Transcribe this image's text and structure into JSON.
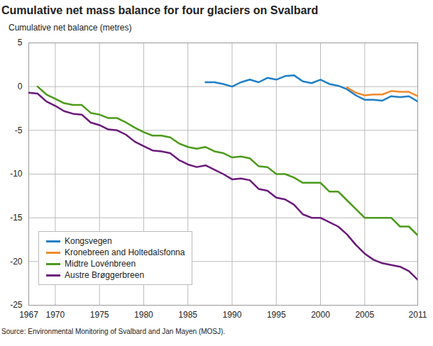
{
  "chart_data": {
    "type": "line",
    "title": "Cumulative net mass balance for four glaciers on Svalbard",
    "y_label": "Cumulative net balance (metres)",
    "source": "Source: Environmental Monitoring of Svalbard and Jan Mayen (MOSJ).",
    "x": [
      1967,
      1968,
      1969,
      1970,
      1971,
      1972,
      1973,
      1974,
      1975,
      1976,
      1977,
      1978,
      1979,
      1980,
      1981,
      1982,
      1983,
      1984,
      1985,
      1986,
      1987,
      1988,
      1989,
      1990,
      1991,
      1992,
      1993,
      1994,
      1995,
      1996,
      1997,
      1998,
      1999,
      2000,
      2001,
      2002,
      2003,
      2004,
      2005,
      2006,
      2007,
      2008,
      2009,
      2010,
      2011
    ],
    "series": [
      {
        "name": "Kongsvegen",
        "color": "#1f7fc6",
        "values": [
          null,
          null,
          null,
          null,
          null,
          null,
          null,
          null,
          null,
          null,
          null,
          null,
          null,
          null,
          null,
          null,
          null,
          null,
          null,
          null,
          0.5,
          0.5,
          0.3,
          0.0,
          0.5,
          0.8,
          0.5,
          1.0,
          0.8,
          1.2,
          1.3,
          0.6,
          0.4,
          0.8,
          0.3,
          0.1,
          -0.3,
          -1.0,
          -1.5,
          -1.5,
          -1.6,
          -1.1,
          -1.2,
          -1.1,
          -1.7
        ]
      },
      {
        "name": "Kronebreen and Holtedalsfonna",
        "color": "#f08a2c",
        "values": [
          null,
          null,
          null,
          null,
          null,
          null,
          null,
          null,
          null,
          null,
          null,
          null,
          null,
          null,
          null,
          null,
          null,
          null,
          null,
          null,
          null,
          null,
          null,
          null,
          null,
          null,
          null,
          null,
          null,
          null,
          null,
          null,
          null,
          null,
          null,
          null,
          -0.1,
          -0.7,
          -1.0,
          -0.9,
          -0.9,
          -0.5,
          -0.6,
          -0.6,
          -1.1
        ]
      },
      {
        "name": "Midtre Lovénbreen",
        "color": "#4c9a1a",
        "values": [
          null,
          0,
          -0.9,
          -1.4,
          -1.9,
          -2.1,
          -2.1,
          -3.0,
          -3.2,
          -3.6,
          -3.6,
          -4.1,
          -4.7,
          -5.2,
          -5.6,
          -5.6,
          -5.8,
          -6.5,
          -6.9,
          -7.1,
          -6.9,
          -7.4,
          -7.6,
          -8.1,
          -8.0,
          -8.2,
          -9.1,
          -9.2,
          -10.0,
          -10.0,
          -10.4,
          -11.0,
          -11.0,
          -11.0,
          -12.0,
          -12.0,
          -13.0,
          -14.0,
          -15.0,
          -15.0,
          -15.0,
          -15.0,
          -16.0,
          -16.0,
          -17.0
        ]
      },
      {
        "name": "Austre Brøggerbreen",
        "color": "#6a1a7a",
        "values": [
          -0.7,
          -0.8,
          -1.7,
          -2.2,
          -2.8,
          -3.1,
          -3.2,
          -4.1,
          -4.4,
          -4.9,
          -5.0,
          -5.5,
          -6.3,
          -6.8,
          -7.3,
          -7.4,
          -7.6,
          -8.4,
          -8.9,
          -9.2,
          -9.0,
          -9.5,
          -10.0,
          -10.6,
          -10.5,
          -10.7,
          -11.7,
          -11.9,
          -12.7,
          -12.9,
          -13.5,
          -14.6,
          -15.0,
          -15.0,
          -15.5,
          -16.0,
          -16.9,
          -18.1,
          -19.1,
          -19.8,
          -20.2,
          -20.4,
          -20.6,
          -21.1,
          -22.1
        ]
      }
    ],
    "xlim": [
      1967,
      2011
    ],
    "xticks": [
      1967,
      1970,
      1975,
      1980,
      1985,
      1990,
      1995,
      2000,
      2005,
      2011
    ],
    "ylim": [
      -25,
      5
    ],
    "yticks": [
      -25,
      -20,
      -15,
      -10,
      -5,
      0,
      5
    ],
    "grid": true,
    "legend": "bottom-left"
  }
}
